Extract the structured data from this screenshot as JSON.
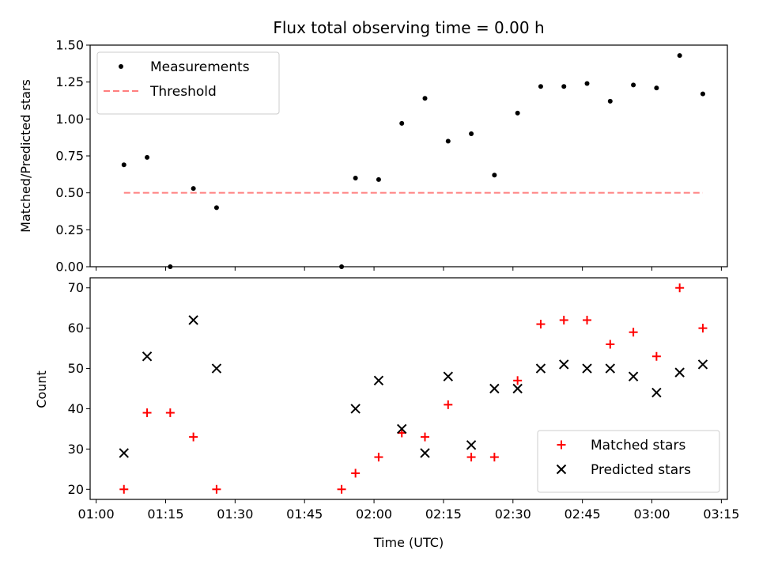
{
  "chart_data": [
    {
      "type": "scatter",
      "title": "Flux total observing time = 0.00 h",
      "xlabel": "",
      "ylabel": "Matched/Predicted stars",
      "ylim": [
        0.0,
        1.5
      ],
      "yticks": [
        "0.00",
        "0.25",
        "0.50",
        "0.75",
        "1.00",
        "1.25",
        "1.50"
      ],
      "xticks": [
        "01:00",
        "01:15",
        "01:30",
        "01:45",
        "02:00",
        "02:15",
        "02:30",
        "02:45",
        "03:00",
        "03:15"
      ],
      "legend_position": "top-left",
      "series": [
        {
          "name": "Measurements",
          "marker": "dot",
          "color": "#000000",
          "x": [
            "01:06",
            "01:11",
            "01:16",
            "01:21",
            "01:26",
            "01:53",
            "01:56",
            "02:01",
            "02:06",
            "02:11",
            "02:16",
            "02:21",
            "02:26",
            "02:31",
            "02:36",
            "02:41",
            "02:46",
            "02:51",
            "02:56",
            "03:01",
            "03:06",
            "03:11"
          ],
          "y": [
            0.69,
            0.74,
            0.0,
            0.53,
            0.4,
            0.0,
            0.6,
            0.59,
            0.97,
            1.14,
            0.85,
            0.9,
            0.62,
            1.04,
            1.22,
            1.22,
            1.24,
            1.12,
            1.23,
            1.21,
            1.43,
            1.17
          ]
        },
        {
          "name": "Threshold",
          "style": "dashed-line",
          "color": "#ff7f7f",
          "x": [
            "01:06",
            "03:11"
          ],
          "y": [
            0.5,
            0.5
          ]
        }
      ]
    },
    {
      "type": "scatter",
      "title": "",
      "xlabel": "Time (UTC)",
      "ylabel": "Count",
      "ylim": [
        17.5,
        72.5
      ],
      "yticks": [
        "20",
        "30",
        "40",
        "50",
        "60",
        "70"
      ],
      "xticks": [
        "01:00",
        "01:15",
        "01:30",
        "01:45",
        "02:00",
        "02:15",
        "02:30",
        "02:45",
        "03:00",
        "03:15"
      ],
      "legend_position": "bottom-right",
      "series": [
        {
          "name": "Matched stars",
          "marker": "plus",
          "color": "#ff0000",
          "x": [
            "01:06",
            "01:11",
            "01:16",
            "01:21",
            "01:26",
            "01:53",
            "01:56",
            "02:01",
            "02:06",
            "02:11",
            "02:16",
            "02:21",
            "02:26",
            "02:31",
            "02:36",
            "02:41",
            "02:46",
            "02:51",
            "02:56",
            "03:01",
            "03:06",
            "03:11"
          ],
          "y": [
            20,
            39,
            39,
            33,
            20,
            20,
            24,
            28,
            34,
            33,
            41,
            28,
            28,
            47,
            61,
            62,
            62,
            56,
            59,
            53,
            70,
            60
          ]
        },
        {
          "name": "Predicted stars",
          "marker": "x",
          "color": "#000000",
          "x": [
            "01:06",
            "01:11",
            "01:21",
            "01:26",
            "01:56",
            "02:01",
            "02:06",
            "02:11",
            "02:16",
            "02:21",
            "02:26",
            "02:31",
            "02:36",
            "02:41",
            "02:46",
            "02:51",
            "02:56",
            "03:01",
            "03:06",
            "03:11"
          ],
          "y": [
            29,
            53,
            62,
            50,
            40,
            47,
            35,
            29,
            48,
            31,
            45,
            45,
            50,
            51,
            50,
            50,
            48,
            44,
            49,
            51
          ]
        }
      ]
    }
  ]
}
